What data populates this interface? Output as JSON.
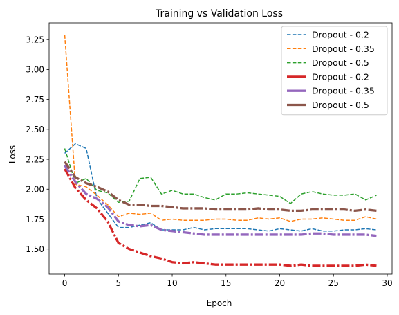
{
  "chart_data": {
    "type": "line",
    "title": "Training vs Validation Loss",
    "xlabel": "Epoch",
    "ylabel": "Loss",
    "xlim": [
      -1.45,
      30.45
    ],
    "ylim": [
      1.29,
      3.39
    ],
    "xticks": [
      0,
      5,
      10,
      15,
      20,
      25,
      30
    ],
    "yticks": [
      1.5,
      1.75,
      2.0,
      2.25,
      2.5,
      2.75,
      3.0,
      3.25
    ],
    "grid": false,
    "legend_position": "top-right",
    "x": [
      0,
      1,
      2,
      3,
      4,
      5,
      6,
      7,
      8,
      9,
      10,
      11,
      12,
      13,
      14,
      15,
      16,
      17,
      18,
      19,
      20,
      21,
      22,
      23,
      24,
      25,
      26,
      27,
      28,
      29
    ],
    "series": [
      {
        "name": "Dropout - 0.2",
        "color": "#1f77b4",
        "style": "dashed",
        "values": [
          2.3,
          2.38,
          2.34,
          1.92,
          1.8,
          1.68,
          1.68,
          1.7,
          1.72,
          1.66,
          1.66,
          1.66,
          1.68,
          1.66,
          1.67,
          1.67,
          1.67,
          1.67,
          1.66,
          1.65,
          1.67,
          1.66,
          1.65,
          1.67,
          1.65,
          1.65,
          1.66,
          1.66,
          1.67,
          1.66
        ]
      },
      {
        "name": "Dropout - 0.35",
        "color": "#ff7f0e",
        "style": "dashed",
        "values": [
          3.29,
          2.04,
          2.02,
          1.95,
          1.87,
          1.77,
          1.8,
          1.79,
          1.8,
          1.74,
          1.75,
          1.74,
          1.74,
          1.74,
          1.75,
          1.75,
          1.74,
          1.74,
          1.76,
          1.75,
          1.76,
          1.73,
          1.75,
          1.75,
          1.76,
          1.75,
          1.74,
          1.74,
          1.77,
          1.75
        ]
      },
      {
        "name": "Dropout - 0.5",
        "color": "#2ca02c",
        "style": "dashed",
        "values": [
          2.34,
          2.05,
          2.09,
          1.99,
          1.97,
          1.89,
          1.9,
          2.09,
          2.1,
          1.96,
          1.99,
          1.96,
          1.96,
          1.93,
          1.91,
          1.96,
          1.96,
          1.97,
          1.96,
          1.95,
          1.94,
          1.88,
          1.96,
          1.98,
          1.96,
          1.95,
          1.95,
          1.96,
          1.91,
          1.95
        ]
      },
      {
        "name": "Dropout - 0.2",
        "color": "#d62728",
        "style": "dashdot",
        "values": [
          2.17,
          2.01,
          1.91,
          1.84,
          1.73,
          1.55,
          1.5,
          1.47,
          1.44,
          1.42,
          1.39,
          1.38,
          1.39,
          1.38,
          1.37,
          1.37,
          1.37,
          1.37,
          1.37,
          1.37,
          1.37,
          1.36,
          1.37,
          1.36,
          1.36,
          1.36,
          1.36,
          1.36,
          1.37,
          1.36
        ]
      },
      {
        "name": "Dropout - 0.35",
        "color": "#9467bd",
        "style": "dashdot",
        "values": [
          2.2,
          2.06,
          1.96,
          1.92,
          1.85,
          1.73,
          1.7,
          1.69,
          1.7,
          1.66,
          1.65,
          1.64,
          1.63,
          1.62,
          1.62,
          1.62,
          1.62,
          1.62,
          1.62,
          1.62,
          1.62,
          1.62,
          1.62,
          1.63,
          1.63,
          1.62,
          1.62,
          1.62,
          1.62,
          1.61
        ]
      },
      {
        "name": "Dropout - 0.5",
        "color": "#8c564b",
        "style": "dashdot",
        "values": [
          2.23,
          2.1,
          2.05,
          2.02,
          1.98,
          1.91,
          1.87,
          1.87,
          1.86,
          1.86,
          1.85,
          1.84,
          1.84,
          1.84,
          1.83,
          1.83,
          1.83,
          1.83,
          1.84,
          1.83,
          1.83,
          1.82,
          1.82,
          1.83,
          1.83,
          1.83,
          1.83,
          1.82,
          1.83,
          1.82
        ]
      }
    ]
  }
}
